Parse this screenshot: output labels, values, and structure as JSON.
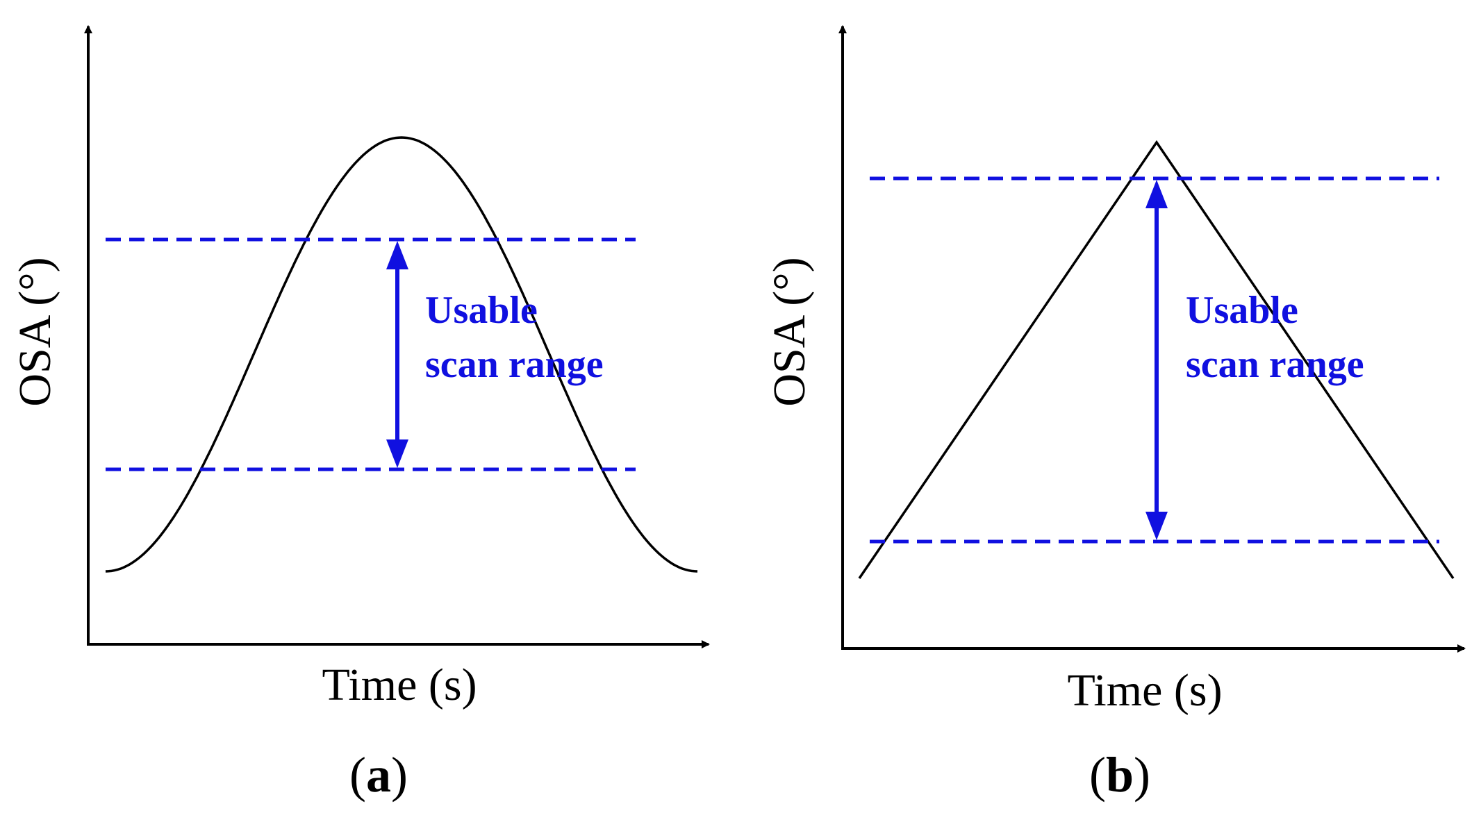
{
  "colors": {
    "curve": "#000000",
    "range": "#1010e0",
    "axis": "#000000"
  },
  "panels": [
    {
      "id": "a",
      "curve_shape": "sinusoidal",
      "x_label": "Time (s)",
      "y_label": "OSA (°)",
      "annotation_line1": "Usable",
      "annotation_line2": "scan range",
      "panel_open": "(",
      "panel_letter": "a",
      "panel_close": ")"
    },
    {
      "id": "b",
      "curve_shape": "triangular",
      "x_label": "Time (s)",
      "y_label": "OSA (°)",
      "annotation_line1": "Usable",
      "annotation_line2": "scan range",
      "panel_open": "(",
      "panel_letter": "b",
      "panel_close": ")"
    }
  ]
}
